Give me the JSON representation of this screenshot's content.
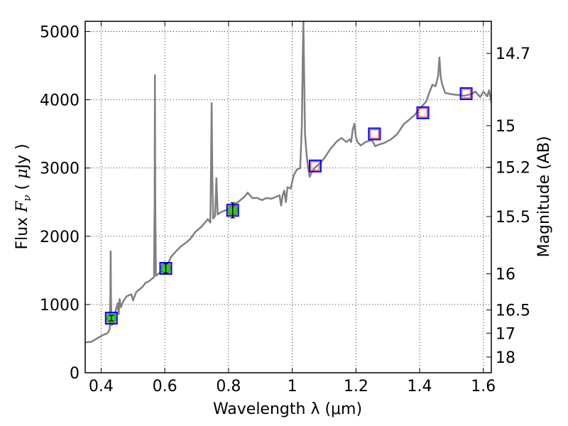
{
  "chart_data": {
    "type": "line",
    "xlabel": "Wavelength  λ (μm)",
    "ylabel_parts": [
      "Flux  ",
      "F",
      "ν",
      "  ( ",
      "μ",
      "Jy )"
    ],
    "y2label": "Magnitude (AB)",
    "xlim": [
      0.35,
      1.625
    ],
    "ylim": [
      0,
      5150
    ],
    "x_ticks": [
      0.4,
      0.6,
      0.8,
      1.0,
      1.2,
      1.4,
      1.6
    ],
    "x_tick_labels": [
      "0.4",
      "0.6",
      "0.8",
      "1",
      "1.2",
      "1.4",
      "1.6"
    ],
    "y_ticks": [
      0,
      1000,
      2000,
      3000,
      4000,
      5000
    ],
    "y_tick_labels": [
      "0",
      "1000",
      "2000",
      "3000",
      "4000",
      "5000"
    ],
    "y2_ticks": [
      {
        "label": "14.7",
        "flux": 4680
      },
      {
        "label": "15",
        "flux": 3620
      },
      {
        "label": "15.2",
        "flux": 3010
      },
      {
        "label": "15.5",
        "flux": 2290
      },
      {
        "label": "16",
        "flux": 1450
      },
      {
        "label": "16.5",
        "flux": 920
      },
      {
        "label": "17",
        "flux": 580
      },
      {
        "label": "18",
        "flux": 230
      }
    ],
    "grid": true,
    "colors": {
      "spectrum": "#808080",
      "box": "#0000ff",
      "model_square": "#e8404a",
      "observed": "#2ecc2e",
      "errorbar": "#000000"
    },
    "series": [
      {
        "points": [
          [
            0.35,
            445
          ],
          [
            0.37,
            455
          ],
          [
            0.39,
            510
          ],
          [
            0.405,
            550
          ],
          [
            0.42,
            580
          ],
          [
            0.425,
            620
          ],
          [
            0.427,
            640
          ],
          [
            0.429,
            1100
          ],
          [
            0.43,
            1780
          ],
          [
            0.431,
            1100
          ],
          [
            0.433,
            700
          ],
          [
            0.438,
            720
          ],
          [
            0.44,
            800
          ],
          [
            0.445,
            900
          ],
          [
            0.452,
            1020
          ],
          [
            0.455,
            860
          ],
          [
            0.458,
            1080
          ],
          [
            0.462,
            960
          ],
          [
            0.47,
            1050
          ],
          [
            0.48,
            1120
          ],
          [
            0.495,
            1150
          ],
          [
            0.5,
            1060
          ],
          [
            0.51,
            1180
          ],
          [
            0.52,
            1220
          ],
          [
            0.53,
            1260
          ],
          [
            0.54,
            1320
          ],
          [
            0.55,
            1340
          ],
          [
            0.56,
            1380
          ],
          [
            0.566,
            1400
          ],
          [
            0.568,
            2500
          ],
          [
            0.569,
            4360
          ],
          [
            0.57,
            2500
          ],
          [
            0.572,
            1420
          ],
          [
            0.58,
            1450
          ],
          [
            0.595,
            1500
          ],
          [
            0.61,
            1600
          ],
          [
            0.62,
            1700
          ],
          [
            0.635,
            1780
          ],
          [
            0.65,
            1850
          ],
          [
            0.665,
            1900
          ],
          [
            0.68,
            1960
          ],
          [
            0.695,
            2060
          ],
          [
            0.715,
            2140
          ],
          [
            0.735,
            2250
          ],
          [
            0.743,
            2200
          ],
          [
            0.745,
            3000
          ],
          [
            0.747,
            3950
          ],
          [
            0.749,
            2900
          ],
          [
            0.752,
            2260
          ],
          [
            0.758,
            2300
          ],
          [
            0.762,
            2850
          ],
          [
            0.766,
            2320
          ],
          [
            0.775,
            2350
          ],
          [
            0.8,
            2400
          ],
          [
            0.82,
            2470
          ],
          [
            0.835,
            2520
          ],
          [
            0.85,
            2580
          ],
          [
            0.86,
            2640
          ],
          [
            0.875,
            2560
          ],
          [
            0.89,
            2560
          ],
          [
            0.905,
            2530
          ],
          [
            0.92,
            2560
          ],
          [
            0.935,
            2550
          ],
          [
            0.95,
            2580
          ],
          [
            0.96,
            2600
          ],
          [
            0.965,
            2450
          ],
          [
            0.97,
            2600
          ],
          [
            0.975,
            2670
          ],
          [
            0.98,
            2500
          ],
          [
            0.985,
            2720
          ],
          [
            0.995,
            2700
          ],
          [
            1.005,
            2900
          ],
          [
            1.015,
            2980
          ],
          [
            1.025,
            3000
          ],
          [
            1.03,
            3600
          ],
          [
            1.033,
            4600
          ],
          [
            1.035,
            5150
          ],
          [
            1.037,
            4500
          ],
          [
            1.04,
            3500
          ],
          [
            1.045,
            3200
          ],
          [
            1.05,
            3000
          ],
          [
            1.055,
            2870
          ],
          [
            1.06,
            2930
          ],
          [
            1.07,
            3000
          ],
          [
            1.085,
            3060
          ],
          [
            1.1,
            3140
          ],
          [
            1.12,
            3280
          ],
          [
            1.14,
            3390
          ],
          [
            1.155,
            3440
          ],
          [
            1.17,
            3380
          ],
          [
            1.18,
            3420
          ],
          [
            1.185,
            3380
          ],
          [
            1.19,
            3560
          ],
          [
            1.195,
            3650
          ],
          [
            1.2,
            3450
          ],
          [
            1.205,
            3380
          ],
          [
            1.215,
            3330
          ],
          [
            1.23,
            3380
          ],
          [
            1.25,
            3410
          ],
          [
            1.26,
            3320
          ],
          [
            1.27,
            3340
          ],
          [
            1.29,
            3370
          ],
          [
            1.31,
            3420
          ],
          [
            1.33,
            3500
          ],
          [
            1.35,
            3640
          ],
          [
            1.37,
            3720
          ],
          [
            1.385,
            3780
          ],
          [
            1.4,
            3870
          ],
          [
            1.42,
            3970
          ],
          [
            1.43,
            4100
          ],
          [
            1.44,
            4220
          ],
          [
            1.45,
            4200
          ],
          [
            1.458,
            4350
          ],
          [
            1.462,
            4620
          ],
          [
            1.466,
            4340
          ],
          [
            1.47,
            4240
          ],
          [
            1.48,
            4100
          ],
          [
            1.5,
            4080
          ],
          [
            1.52,
            4070
          ],
          [
            1.54,
            4060
          ],
          [
            1.56,
            4080
          ],
          [
            1.575,
            4120
          ],
          [
            1.59,
            4040
          ],
          [
            1.6,
            4120
          ],
          [
            1.612,
            4050
          ],
          [
            1.618,
            4140
          ],
          [
            1.625,
            3960
          ]
        ]
      }
    ],
    "model_points": [
      {
        "x": 0.432,
        "y": 800
      },
      {
        "x": 0.603,
        "y": 1530
      },
      {
        "x": 0.813,
        "y": 2380
      },
      {
        "x": 1.072,
        "y": 3030
      },
      {
        "x": 1.258,
        "y": 3500
      },
      {
        "x": 1.41,
        "y": 3810
      },
      {
        "x": 1.546,
        "y": 4090
      }
    ],
    "observed_points": [
      {
        "x": 0.432,
        "y": 800,
        "err": 40
      },
      {
        "x": 0.603,
        "y": 1530,
        "err": 70
      },
      {
        "x": 0.813,
        "y": 2380,
        "err": 110
      }
    ]
  }
}
